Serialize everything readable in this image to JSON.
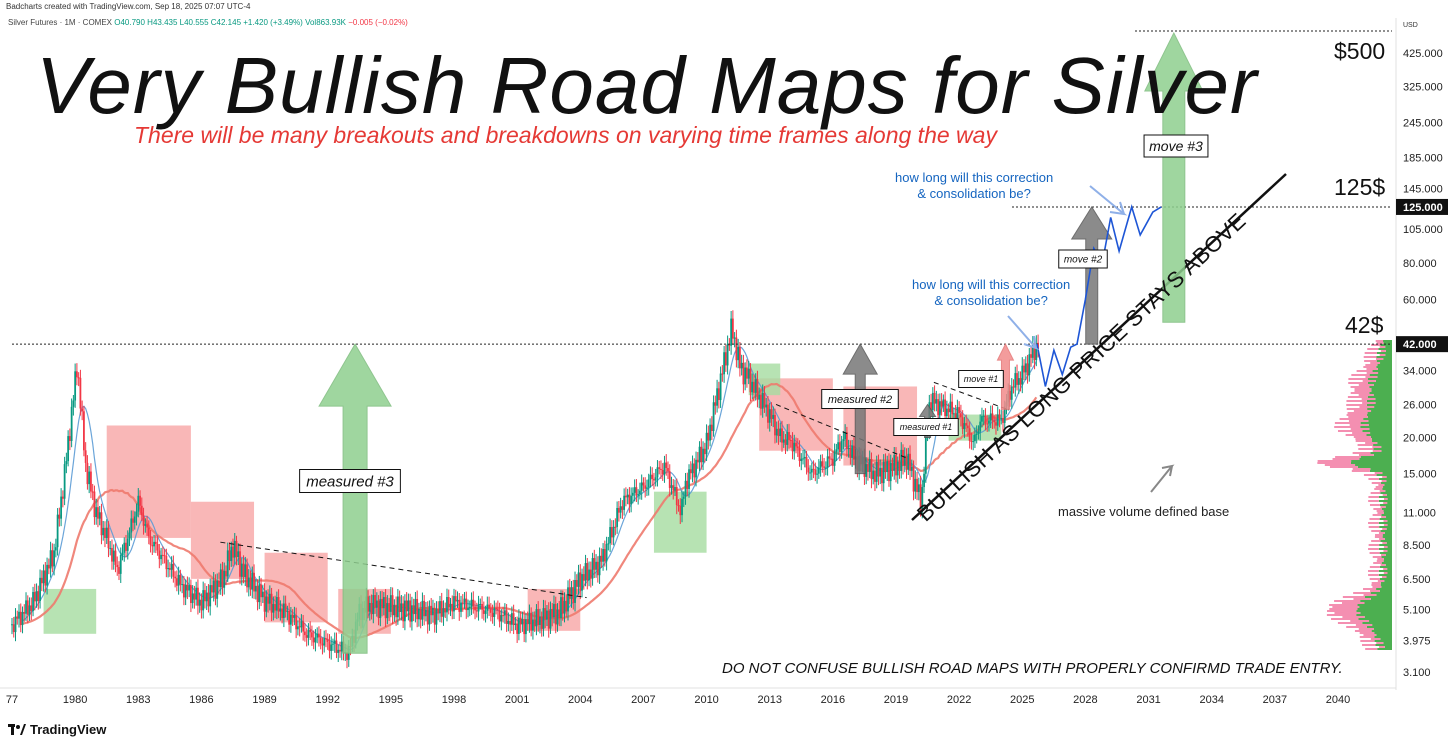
{
  "header": {
    "credit": "Badcharts created with TradingView.com, Sep 18, 2025 07:07 UTC-4",
    "symbol": "Silver Futures · 1M · COMEX",
    "ohlc": "O40.790 H43.435 L40.555 C42.145 +1.420 (+3.49%)",
    "volume": "Vol863.93K",
    "vol_change": "−0.005 (−0.02%)"
  },
  "text": {
    "title": "Very Bullish Road Maps for Silver",
    "subtitle": "There will be many breakouts and breakdowns on varying time frames along the way",
    "disclaimer": "DO NOT CONFUSE BULLISH ROAD MAPS WITH PROPERLY CONFIRMD TRADE ENTRY.",
    "diagonal": "BULLISH AS LONG PRICE STAYS ABOVE",
    "note_upper": "how long will this correction\n& consolidation be?",
    "note_lower": "how long will this correction\n& consolidation be?",
    "base_note": "massive volume defined base",
    "level_500": "$500",
    "level_125": "125$",
    "level_42": "42$",
    "brand": "TradingView"
  },
  "colors": {
    "green_arrow": "#8fcf8f",
    "gray_arrow": "#777777",
    "pink_arrow": "#f28b8b",
    "bull_candle": "#089981",
    "bear_candle": "#f23645",
    "cloud_red": "#f7a5a5",
    "cloud_green": "#a5dca0",
    "ma_red": "#ee7a6e",
    "ma_blue": "#5b9bd5",
    "path_blue": "#1e56d6",
    "note_blue": "#1565c0",
    "subtitle_red": "#e53935"
  },
  "chart_data": {
    "type": "line",
    "title": "Very Bullish Road Maps for Silver",
    "subtitle": "There will be many breakouts and breakdowns on varying time frames along the way",
    "xlabel": "",
    "ylabel": "USD",
    "scale": "log",
    "currency": "USD",
    "x_tick_labels": [
      "77",
      "1980",
      "1983",
      "1986",
      "1989",
      "1992",
      "1995",
      "1998",
      "2001",
      "2004",
      "2007",
      "2010",
      "2013",
      "2016",
      "2019",
      "2022",
      "2025",
      "2028",
      "2031",
      "2034",
      "2037",
      "2040"
    ],
    "y_tick_labels": [
      "425.000",
      "325.000",
      "245.000",
      "185.000",
      "145.000",
      "105.000",
      "80.000",
      "60.000",
      "34.000",
      "26.000",
      "20.000",
      "15.000",
      "11.000",
      "8.500",
      "6.500",
      "5.100",
      "3.975",
      "3.100"
    ],
    "y_ticks": [
      425,
      325,
      245,
      185,
      145,
      105,
      80,
      60,
      34,
      26,
      20,
      15,
      11,
      8.5,
      6.5,
      5.1,
      3.975,
      3.1
    ],
    "price_tags": [
      {
        "value": 125,
        "label": "125.000"
      },
      {
        "value": 42,
        "label": "42.000"
      }
    ],
    "levels": [
      {
        "value": 500,
        "label": "$500"
      },
      {
        "value": 125,
        "label": "125$"
      },
      {
        "value": 42,
        "label": "42$"
      }
    ],
    "price_series": {
      "name": "",
      "x": [
        1977,
        1978,
        1979,
        1979.5,
        1980.1,
        1980.5,
        1981,
        1981.5,
        1982,
        1982.5,
        1983,
        1983.5,
        1984,
        1985,
        1986,
        1987,
        1987.5,
        1988,
        1989,
        1990,
        1991,
        1992,
        1993,
        1993.5,
        1994,
        1995,
        1996,
        1997,
        1998,
        1999,
        2000,
        2001,
        2002,
        2003,
        2004,
        2005,
        2006,
        2007,
        2008,
        2008.8,
        2009,
        2010,
        2010.5,
        2011.2,
        2011.6,
        2012,
        2013,
        2013.5,
        2014,
        2015,
        2016,
        2016.5,
        2017,
        2018,
        2019,
        2019.5,
        2020.2,
        2020.6,
        2021,
        2022,
        2022.7,
        2023,
        2024,
        2024.5,
        2025,
        2025.7
      ],
      "y": [
        4.5,
        5.4,
        8,
        15,
        36,
        16,
        11,
        9,
        7,
        9,
        12,
        9,
        8,
        6.2,
        5.4,
        6.5,
        8.5,
        6.8,
        5.5,
        5,
        4.2,
        3.9,
        3.6,
        5,
        5.3,
        5.2,
        5.1,
        4.9,
        5.4,
        5.2,
        5,
        4.5,
        4.7,
        5,
        6.5,
        7.5,
        12,
        13.5,
        16,
        11,
        14,
        19,
        28,
        48,
        35,
        32,
        24,
        20,
        19.5,
        15,
        17,
        20,
        17,
        15,
        16,
        17,
        12,
        27,
        26,
        24,
        19,
        23,
        23,
        30,
        33,
        42
      ]
    },
    "projected_path": {
      "name": "",
      "x": [
        2025.7,
        2026.1,
        2026.5,
        2026.9,
        2027.3,
        2027.6,
        2028,
        2028.4,
        2028.8,
        2029.2,
        2029.6,
        2030.2,
        2030.6,
        2031.2,
        2031.6
      ],
      "y": [
        42,
        30,
        40,
        33,
        41,
        42,
        60,
        90,
        80,
        115,
        88,
        125,
        100,
        120,
        125
      ]
    },
    "annotations": [
      {
        "type": "arrow",
        "label": "measured #3",
        "from_x": 1993.3,
        "from_y": 3.6,
        "to_y": 42,
        "color": "green"
      },
      {
        "type": "arrow",
        "label": "measured #2",
        "from_x": 2017.3,
        "from_y": 15,
        "to_y": 42,
        "color": "gray"
      },
      {
        "type": "arrow",
        "label": "measured #1",
        "from_x": 2020.5,
        "from_y": 20,
        "to_y": 26,
        "color": "gray"
      },
      {
        "type": "arrow",
        "label": "move #1",
        "from_x": 2024.2,
        "from_y": 25,
        "to_y": 42,
        "color": "pink"
      },
      {
        "type": "arrow",
        "label": "move #2",
        "from_x": 2028.3,
        "from_y": 42,
        "to_y": 125,
        "color": "gray"
      },
      {
        "type": "arrow",
        "label": "move #3",
        "from_x": 2032.2,
        "from_y": 50,
        "to_y": 500,
        "color": "green"
      }
    ],
    "grid": false,
    "legend": "none"
  }
}
